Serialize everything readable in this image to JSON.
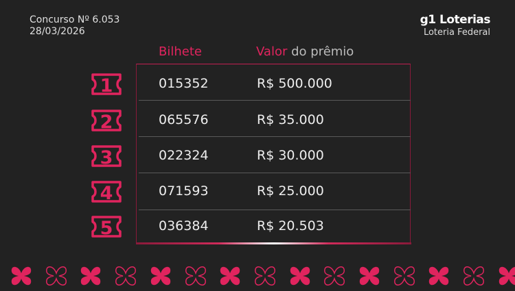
{
  "header": {
    "contest": "Concurso Nº 6.053",
    "date": "28/03/2026",
    "brand": "g1 Loterias",
    "subtitle": "Loteria Federal"
  },
  "columns": {
    "ticket": "Bilhete",
    "prize_accent": "Valor",
    "prize_rest": " do prêmio"
  },
  "rows": [
    {
      "place": "1",
      "ticket": "015352",
      "prize": "R$ 500.000"
    },
    {
      "place": "2",
      "ticket": "065576",
      "prize": "R$ 35.000"
    },
    {
      "place": "3",
      "ticket": "022324",
      "prize": "R$ 30.000"
    },
    {
      "place": "4",
      "ticket": "071593",
      "prize": "R$ 25.000"
    },
    {
      "place": "5",
      "ticket": "036384",
      "prize": "R$ 20.503"
    }
  ],
  "colors": {
    "accent": "#e0245e",
    "background": "#222222"
  },
  "decoration": {
    "icon": "clover-icon",
    "count": 15
  }
}
